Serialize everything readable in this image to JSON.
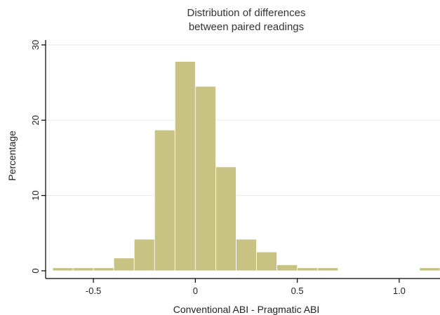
{
  "chart_data": {
    "type": "bar",
    "title_lines": [
      "Distribution of differences",
      "between paired readings"
    ],
    "xlabel": "Conventional ABI - Pragmatic ABI",
    "ylabel": "Percentage",
    "xlim": [
      -0.7,
      1.2
    ],
    "ylim": [
      0,
      30
    ],
    "x_ticks": [
      {
        "value": -0.5,
        "label": "-0.5"
      },
      {
        "value": 0,
        "label": "0"
      },
      {
        "value": 0.5,
        "label": "0.5"
      },
      {
        "value": 1.0,
        "label": "1.0"
      }
    ],
    "y_ticks": [
      {
        "value": 0,
        "label": "0"
      },
      {
        "value": 10,
        "label": "10"
      },
      {
        "value": 20,
        "label": "20"
      },
      {
        "value": 30,
        "label": "30"
      }
    ],
    "grid": true,
    "bar_color": "#c8c283",
    "bins": [
      {
        "x0": -0.7,
        "x1": -0.6,
        "value": 0.4
      },
      {
        "x0": -0.6,
        "x1": -0.5,
        "value": 0.4
      },
      {
        "x0": -0.5,
        "x1": -0.4,
        "value": 0.4
      },
      {
        "x0": -0.4,
        "x1": -0.3,
        "value": 1.7
      },
      {
        "x0": -0.3,
        "x1": -0.2,
        "value": 4.2
      },
      {
        "x0": -0.2,
        "x1": -0.1,
        "value": 18.7
      },
      {
        "x0": -0.1,
        "x1": 0.0,
        "value": 27.8
      },
      {
        "x0": 0.0,
        "x1": 0.1,
        "value": 24.5
      },
      {
        "x0": 0.1,
        "x1": 0.2,
        "value": 13.8
      },
      {
        "x0": 0.2,
        "x1": 0.3,
        "value": 4.2
      },
      {
        "x0": 0.3,
        "x1": 0.4,
        "value": 2.5
      },
      {
        "x0": 0.4,
        "x1": 0.5,
        "value": 0.8
      },
      {
        "x0": 0.5,
        "x1": 0.6,
        "value": 0.4
      },
      {
        "x0": 0.6,
        "x1": 0.7,
        "value": 0.4
      },
      {
        "x0": 1.1,
        "x1": 1.2,
        "value": 0.4
      }
    ]
  }
}
